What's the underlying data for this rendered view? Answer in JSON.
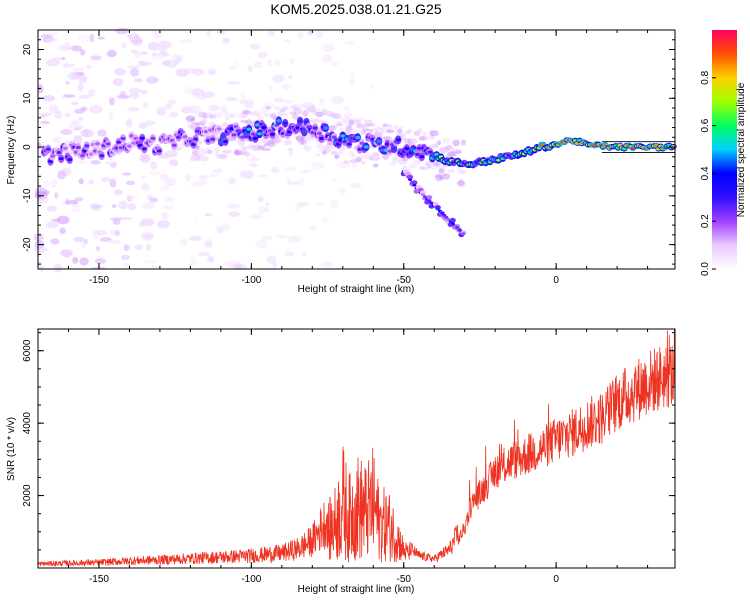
{
  "figure": {
    "title": "KOM5.2025.038.01.21.G25"
  },
  "colors": {
    "snr_line": "#ee3322",
    "axis": "#000000"
  },
  "chart_data": [
    {
      "type": "heatmap",
      "title": "KOM5.2025.038.01.21.G25",
      "xlabel": "Height of straight line (km)",
      "ylabel": "Frequency (Hz)",
      "xlim": [
        -170,
        39
      ],
      "ylim": [
        -25,
        24
      ],
      "xticks": [
        -150,
        -100,
        -50,
        0
      ],
      "yticks": [
        20,
        10,
        0,
        -10,
        -20
      ],
      "grid": false,
      "colorbar": {
        "label": "Normalized spectral amplitude",
        "range": [
          0,
          1
        ],
        "ticks": [
          "0.0",
          "0.2",
          "0.4",
          "0.6",
          "0.8"
        ],
        "colormap": [
          "#ffffff",
          "#e9c8ff",
          "#a040ff",
          "#3010ff",
          "#0000ff",
          "#00d0ff",
          "#00ff60",
          "#a0ff00",
          "#ffd000",
          "#ff5000",
          "#ff0060"
        ]
      },
      "ridges": [
        {
          "name": "main",
          "points": [
            [
              -165,
              -1.5
            ],
            [
              -150,
              -0.5
            ],
            [
              -140,
              1
            ],
            [
              -130,
              0.5
            ],
            [
              -120,
              2
            ],
            [
              -110,
              2.5
            ],
            [
              -100,
              3
            ],
            [
              -90,
              4
            ],
            [
              -80,
              4
            ],
            [
              -70,
              1.5
            ],
            [
              -60,
              0.5
            ],
            [
              -50,
              0
            ],
            [
              -42,
              -1
            ],
            [
              -35,
              -3
            ],
            [
              -28,
              -3.5
            ],
            [
              -20,
              -2.5
            ],
            [
              -12,
              -1.5
            ],
            [
              -5,
              0
            ],
            [
              0,
              0.5
            ],
            [
              5,
              1.5
            ],
            [
              10,
              0.5
            ],
            [
              20,
              0
            ],
            [
              39,
              0
            ]
          ]
        },
        {
          "name": "branch",
          "points": [
            [
              -50,
              -5
            ],
            [
              -45,
              -9
            ],
            [
              -40,
              -12
            ],
            [
              -35,
              -15
            ],
            [
              -30,
              -18
            ]
          ]
        }
      ]
    },
    {
      "type": "line",
      "xlabel": "Height of straight line (km)",
      "ylabel": "SNR (10 * v/v)",
      "xlim": [
        -170,
        39
      ],
      "ylim": [
        0,
        6600
      ],
      "xticks": [
        -150,
        -100,
        -50,
        0
      ],
      "yticks": [
        2000,
        4000,
        6000
      ],
      "grid": false,
      "envelope_x": [
        -170,
        -160,
        -150,
        -140,
        -130,
        -120,
        -110,
        -100,
        -90,
        -85,
        -80,
        -75,
        -72,
        -70,
        -68,
        -65,
        -62,
        -60,
        -58,
        -55,
        -52,
        -50,
        -45,
        -40,
        -35,
        -30,
        -28,
        -25,
        -22,
        -20,
        -18,
        -15,
        -12,
        -10,
        -5,
        0,
        5,
        10,
        15,
        20,
        25,
        30,
        35,
        39
      ],
      "envelope_y": [
        150,
        180,
        200,
        260,
        300,
        350,
        400,
        450,
        550,
        700,
        1000,
        1800,
        2400,
        3500,
        2600,
        3200,
        2900,
        3400,
        2300,
        2200,
        1500,
        800,
        400,
        300,
        600,
        1500,
        2200,
        2600,
        3000,
        3300,
        3400,
        3600,
        3700,
        3800,
        4000,
        4300,
        4500,
        4800,
        5000,
        5500,
        5800,
        6100,
        6300,
        6400
      ]
    }
  ]
}
